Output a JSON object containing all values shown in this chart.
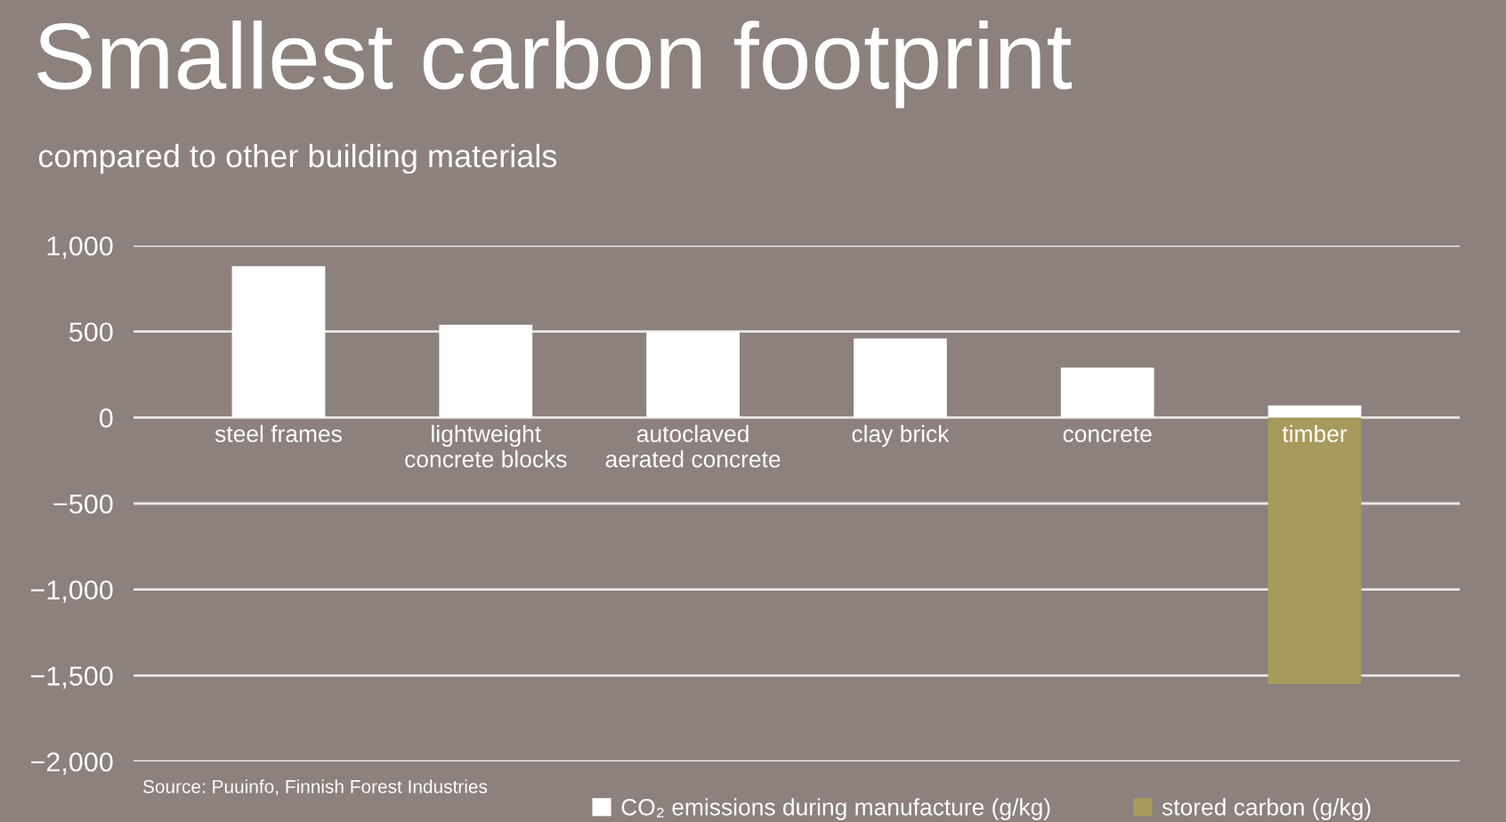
{
  "chart_data": {
    "type": "bar",
    "title": "Smallest carbon footprint",
    "subtitle": "compared to other building materials",
    "categories": [
      "steel frames",
      "lightweight\nconcrete blocks",
      "autoclaved\naerated concrete",
      "clay brick",
      "concrete",
      "timber"
    ],
    "series": [
      {
        "name": "CO₂ emissions during manufacture (g/kg)",
        "color": "#ffffff",
        "values": [
          880,
          540,
          500,
          460,
          290,
          70
        ]
      },
      {
        "name": "stored carbon (g/kg)",
        "color": "#a89a5c",
        "values": [
          null,
          null,
          null,
          null,
          null,
          -1550
        ]
      }
    ],
    "stacked": true,
    "ylim": [
      -2000,
      1000
    ],
    "yticks": [
      {
        "value": -2000,
        "label": "−2,000"
      },
      {
        "value": -1500,
        "label": "−1,500"
      },
      {
        "value": -1000,
        "label": "−1,000"
      },
      {
        "value": -500,
        "label": "−500"
      },
      0,
      500,
      {
        "value": 1000,
        "label": "1,000"
      }
    ],
    "grid": "y",
    "legend": "bottom",
    "annotations": [
      "Source: Puuinfo, Finnish Forest Industries"
    ]
  }
}
